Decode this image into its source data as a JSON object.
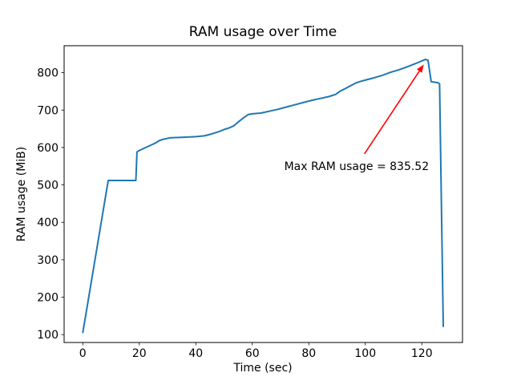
{
  "chart_data": {
    "type": "line",
    "title": "RAM usage over Time",
    "xlabel": "Time (sec)",
    "ylabel": "RAM usage (MiB)",
    "grid": false,
    "legend_position": "none",
    "background_color": "#ffffff",
    "frame_color": "#000000",
    "xlim": [
      -6.6,
      134.4
    ],
    "ylim": [
      79,
      872
    ],
    "x_ticks": [
      0,
      20,
      40,
      60,
      80,
      100,
      120
    ],
    "y_ticks": [
      100,
      200,
      300,
      400,
      500,
      600,
      700,
      800
    ],
    "series": [
      {
        "name": "RAM usage",
        "color": "#1f77b4",
        "x": [
          0,
          1,
          9,
          18.8,
          19.2,
          20,
          22,
          24,
          26,
          27,
          28.5,
          31,
          35,
          40,
          43,
          45.5,
          48,
          50,
          52,
          53.5,
          55,
          57,
          58.5,
          60,
          63,
          66,
          69,
          72,
          75,
          78,
          81,
          84,
          87,
          89.5,
          91,
          93,
          95,
          96.5,
          98,
          100,
          103,
          106,
          109,
          112,
          115,
          117,
          119,
          120.5,
          121.3,
          122.2,
          123.3,
          125.8,
          126.3,
          127.6
        ],
        "y": [
          106,
          150,
          512,
          512,
          588,
          592,
          599,
          606,
          613,
          618,
          622,
          626,
          627,
          629,
          631,
          636,
          642,
          648,
          653,
          658,
          668,
          680,
          688,
          690,
          692,
          697,
          702,
          708,
          714,
          720,
          726,
          731,
          736,
          742,
          750,
          758,
          766,
          772,
          776,
          780,
          786,
          793,
          801,
          808,
          816,
          822,
          828,
          833,
          835.52,
          833,
          776,
          773,
          770,
          122
        ]
      }
    ],
    "max_ram_usage": 835.52,
    "annotation": {
      "text": "Max RAM usage = 835.52",
      "color": "#ff0000",
      "text_xy": [
        71.3,
        540
      ],
      "arrow_tail_xy": [
        99.7,
        583
      ],
      "arrow_tip_xy": [
        120.7,
        822
      ]
    }
  }
}
